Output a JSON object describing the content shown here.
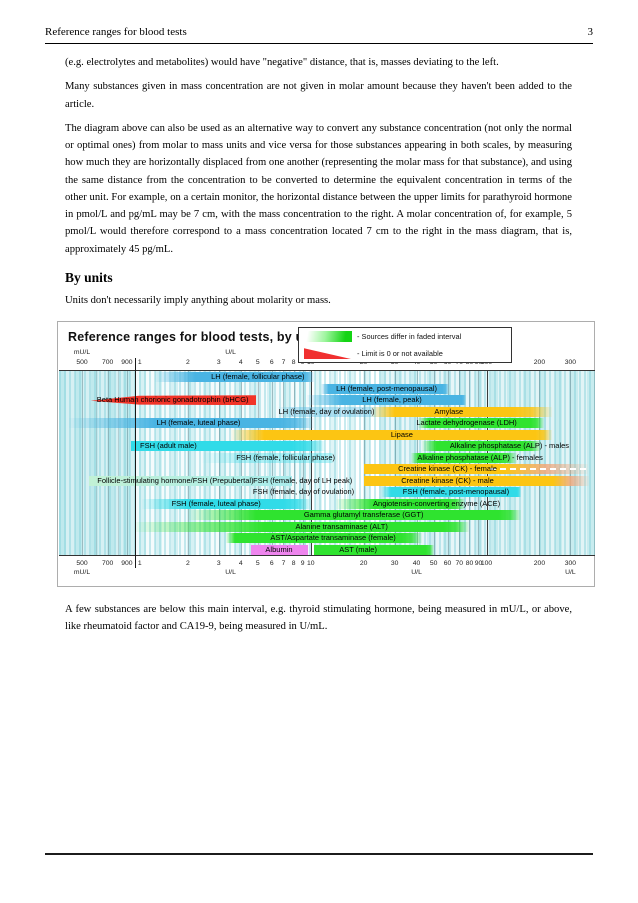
{
  "header": {
    "title": "Reference ranges for blood tests",
    "page_number": "3"
  },
  "body": {
    "p1": "(e.g. electrolytes and metabolites) would have \"negative\" distance, that is, masses deviating to the left.",
    "p2": "Many substances given in mass concentration are not given in molar amount because they haven't been added to the article.",
    "p3": "The diagram above can also be used as an alternative way to convert any substance concentration (not only the normal or optimal ones) from molar to mass units and vice versa for those substances appearing in both scales, by measuring how much they are horizontally displaced from one another (representing the molar mass for that substance), and using the same distance from the concentration to be converted to determine the equivalent concentration in terms of the other unit. For example, on a certain monitor, the horizontal distance between the upper limits for parathyroid hormone in pmol/L and pg/mL may be 7 cm, with the mass concentration to the right. A molar concentration of, for example, 5 pmol/L would therefore correspond to a mass concentration located 7 cm to the right in the mass diagram, that is, approximately 45 pg/mL.",
    "heading": "By units",
    "p4": "Units don't necessarily imply anything about molarity or mass.",
    "p5": "A few substances are below this main interval, e.g. thyroid stimulating hormone, being measured in mU/L, or above, like rheumatoid factor and CA19-9, being measured in U/mL."
  },
  "chart_data": {
    "type": "bar",
    "title": "Reference ranges for blood tests, by units",
    "orientation": "horizontal-range-bars",
    "legend": [
      {
        "swatch": "green-gradient",
        "label": "- Sources differ in faded interval"
      },
      {
        "swatch": "red-triangle",
        "label": "- Limit is 0 or not available"
      }
    ],
    "x_axis": {
      "scale": "log",
      "domain": [
        0.37,
        414
      ],
      "unit": "U/L (main interval), mU/L below 1",
      "ticks": [
        {
          "v": 0.5,
          "label": "500"
        },
        {
          "v": 0.6
        },
        {
          "v": 0.7,
          "label": "700"
        },
        {
          "v": 0.8
        },
        {
          "v": 0.9,
          "label": "900"
        },
        {
          "v": 1,
          "label": "1",
          "divider": true
        },
        {
          "v": 2,
          "label": "2"
        },
        {
          "v": 3,
          "label": "3"
        },
        {
          "v": 4,
          "label": "4"
        },
        {
          "v": 5,
          "label": "5"
        },
        {
          "v": 6,
          "label": "6"
        },
        {
          "v": 7,
          "label": "7"
        },
        {
          "v": 8,
          "label": "8"
        },
        {
          "v": 9,
          "label": "9"
        },
        {
          "v": 10,
          "label": "10"
        },
        {
          "v": 20,
          "label": "20"
        },
        {
          "v": 30,
          "label": "30"
        },
        {
          "v": 40,
          "label": "40"
        },
        {
          "v": 50,
          "label": "50"
        },
        {
          "v": 60,
          "label": "60"
        },
        {
          "v": 70,
          "label": "70"
        },
        {
          "v": 80,
          "label": "80"
        },
        {
          "v": 90,
          "label": "90"
        },
        {
          "v": 100,
          "label": "100"
        },
        {
          "v": 200,
          "label": "200"
        },
        {
          "v": 300,
          "label": "300"
        }
      ],
      "unit_labels_top": [
        {
          "text": "mU/L",
          "v": 0.5
        },
        {
          "text": "U/L",
          "v": 3.5
        },
        {
          "text": "U/L",
          "v": 100
        }
      ],
      "unit_labels_bottom": [
        {
          "text": "mU/L",
          "v": 0.5
        },
        {
          "text": "U/L",
          "v": 3.5
        },
        {
          "text": "U/L",
          "v": 40
        },
        {
          "text": "U/L",
          "v": 300
        }
      ]
    },
    "colors": {
      "lh": "#49b4e3",
      "fsh": "#31dbe8",
      "red": "#f23428",
      "yellow": "#fcc513",
      "green": "#2fe32f",
      "pale": "#c2f2d4",
      "violet": "#ee85ee",
      "salmon": "#f0a87c"
    },
    "background_bands": [
      {
        "from": 0.37,
        "to": 1,
        "op": 0.3
      },
      {
        "from": 1,
        "to": 10,
        "op": 0.08
      },
      {
        "from": 25,
        "to": 100,
        "op": 0.18
      },
      {
        "from": 100,
        "to": 414,
        "op": 0.22
      }
    ],
    "rows": [
      [
        {
          "label": "LH (female, follicular phase)",
          "color": "lh",
          "fl": 1.3,
          "s": 2.2,
          "e": 9.0,
          "fr": 10.5,
          "la": 5.0
        }
      ],
      [
        {
          "label": "LH (female, post-menopausal)",
          "color": "lh",
          "fl": 11.5,
          "s": 12.7,
          "e": 56,
          "fr": 61,
          "la": 27
        }
      ],
      [
        {
          "label": "Beta Human chorionic gonadotrophin (bHCG)",
          "color": "red",
          "taper": "left",
          "fl": 0.56,
          "s": 1.05,
          "e": 4.9,
          "la": 1.64
        },
        {
          "label": "LH (female, peak)",
          "color": "lh",
          "fl": 9.5,
          "s": 15,
          "e": 72,
          "fr": 76,
          "la": 29
        }
      ],
      [
        {
          "label": "LH (female, day of ovulation)",
          "color": "lh",
          "faint": true,
          "fl": 6.5,
          "s": 8,
          "e": 20,
          "fr": 25,
          "la": 12.3
        },
        {
          "label": "Amylase",
          "color": "yellow",
          "fl": 22,
          "s": 30,
          "e": 140,
          "fr": 235,
          "la": 61
        }
      ],
      [
        {
          "label": "LH (female, luteal phase)",
          "color": "lh",
          "fl": 0.42,
          "s": 1.3,
          "e": 6.6,
          "fr": 10.5,
          "la": 2.3
        },
        {
          "label": "Lactate dehydrogenase (LDH)",
          "color": "green",
          "fl": 41,
          "s": 47,
          "e": 178,
          "fr": 212,
          "la": 77
        }
      ],
      [
        {
          "label": "Lipase",
          "color": "yellow",
          "fl": 3.5,
          "s": 5.4,
          "e": 190,
          "fr": 235,
          "la": 33
        }
      ],
      [
        {
          "label": "FSH (adult male)",
          "color": "fsh",
          "s": 0.95,
          "e": 7.8,
          "fr": 12,
          "la": 1.55
        },
        {
          "label": "Alkaline phosphatase (ALP) - males",
          "color": "green",
          "fl": 43,
          "s": 52,
          "e": 160,
          "fr": 205,
          "la": 135
        }
      ],
      [
        {
          "label": "FSH (female, follicular phase)",
          "color": "fsh",
          "faint": true,
          "fl": 2.4,
          "s": 4.0,
          "e": 12.5,
          "fr": 13.5,
          "la": 7.2
        },
        {
          "label": "Alkaline phosphatase (ALP) - females",
          "color": "green",
          "fl": 37,
          "s": 41,
          "e": 115,
          "fr": 150,
          "la": 92
        }
      ],
      [
        {
          "label": "Creatine kinase (CK) - female",
          "color": "yellow",
          "s": 20,
          "e": 125,
          "fr": 380,
          "fade_color": "salmon",
          "dash": [
            105,
            370
          ],
          "la": 60
        }
      ],
      [
        {
          "label": "Follicle-stimulating hormone/FSH (Prepubertal)",
          "color": "pale",
          "s": 0.55,
          "e": 7.8,
          "la": 1.7
        },
        {
          "label": "FSH (female, day of LH peak)",
          "text_only": true,
          "la": 9.0
        },
        {
          "label": "Creatine kinase (CK) - male",
          "color": "yellow",
          "s": 20,
          "e": 240,
          "fr": 385,
          "fade_color": "salmon",
          "la": 60
        }
      ],
      [
        {
          "label": "FSH (female, day of ovulation)",
          "text_only": true,
          "la": 9.1
        },
        {
          "label": "FSH (female, post-menopausal)",
          "color": "fsh",
          "fl": 25,
          "s": 28.5,
          "e": 150,
          "fr": 158,
          "la": 67
        }
      ],
      [
        {
          "label": "FSH (female, luteal phase)",
          "color": "fsh",
          "fl": 1.1,
          "s": 2.0,
          "e": 7.0,
          "fr": 10,
          "la": 2.9
        },
        {
          "label": "Angiotensin-converting enzyme (ACE)",
          "color": "green",
          "fl": 14,
          "s": 23,
          "e": 60,
          "fr": 75,
          "la": 52
        }
      ],
      [
        {
          "label": "Gamma glutamyl transferase (GGT)",
          "color": "green",
          "fl": 2.0,
          "s": 4.9,
          "e": 118,
          "fr": 158,
          "la": 20
        }
      ],
      [
        {
          "label": "Alanine transaminase (ALT)",
          "color": "green",
          "fl": 1.0,
          "s": 5.4,
          "e": 57,
          "fr": 79,
          "la": 15
        }
      ],
      [
        {
          "label": "AST/Aspartate transaminase (female)",
          "color": "green",
          "fl": 3.3,
          "s": 3.7,
          "e": 33,
          "fr": 43,
          "la": 13.4
        }
      ],
      [
        {
          "label": "Albumin",
          "color": "violet",
          "s": 4.6,
          "e": 9.7,
          "la": 6.6
        },
        {
          "label": "AST (male)",
          "color": "green",
          "s": 10.4,
          "e": 45,
          "fr": 50,
          "la": 18.6
        }
      ]
    ]
  }
}
